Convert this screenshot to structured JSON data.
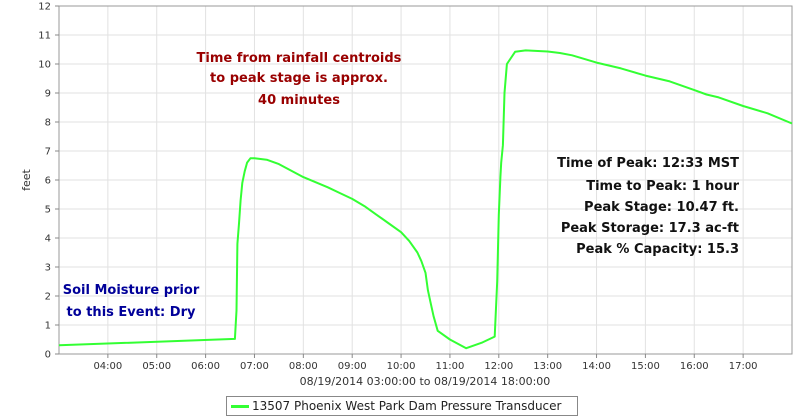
{
  "chart_data": {
    "type": "line",
    "ylabel": "feet",
    "xrange_label": "08/19/2014 03:00:00 to 08/19/2014 18:00:00",
    "xlim": [
      "03:00",
      "18:00"
    ],
    "ylim": [
      0,
      12
    ],
    "x_ticks": [
      "04:00",
      "05:00",
      "06:00",
      "07:00",
      "08:00",
      "09:00",
      "10:00",
      "11:00",
      "12:00",
      "13:00",
      "14:00",
      "15:00",
      "16:00",
      "17:00"
    ],
    "y_ticks": [
      0,
      1,
      2,
      3,
      4,
      5,
      6,
      7,
      8,
      9,
      10,
      11,
      12
    ],
    "grid": true,
    "legend_position": "bottom",
    "series": [
      {
        "name": "13507 Phoenix West Park Dam Pressure Transducer",
        "color": "#33ff33",
        "segments": [
          {
            "x": [
              "03:00",
              "06:36",
              "06:38",
              "06:39",
              "06:41",
              "06:43",
              "06:45",
              "06:48",
              "06:51",
              "06:55",
              "07:00",
              "07:15",
              "07:30",
              "08:00",
              "08:30",
              "08:45",
              "09:00",
              "09:15",
              "09:30",
              "09:45",
              "10:00",
              "10:10",
              "10:20",
              "10:25",
              "10:30",
              "10:33",
              "10:36",
              "10:40",
              "10:45",
              "11:00",
              "11:20",
              "11:40",
              "11:55",
              "11:58",
              "12:00",
              "12:02",
              "12:03",
              "12:05",
              "12:07",
              "12:10",
              "12:20",
              "12:33",
              "13:00",
              "13:15",
              "13:30",
              "14:00",
              "14:15",
              "14:30",
              "15:00",
              "15:30",
              "16:00",
              "16:15",
              "16:30",
              "17:00",
              "17:30",
              "18:00"
            ],
            "y": [
              0.3,
              0.52,
              1.5,
              3.8,
              4.5,
              5.3,
              5.9,
              6.3,
              6.6,
              6.75,
              6.75,
              6.7,
              6.55,
              6.1,
              5.75,
              5.55,
              5.35,
              5.1,
              4.8,
              4.5,
              4.2,
              3.9,
              3.5,
              3.2,
              2.8,
              2.2,
              1.8,
              1.3,
              0.8,
              0.5,
              0.2,
              0.4,
              0.6,
              2.5,
              4.8,
              6.1,
              6.6,
              7.2,
              9.0,
              10.0,
              10.42,
              10.47,
              10.43,
              10.38,
              10.3,
              10.05,
              9.95,
              9.85,
              9.6,
              9.4,
              9.1,
              8.95,
              8.85,
              8.55,
              8.3,
              7.95
            ]
          }
        ]
      }
    ],
    "annotations": [
      {
        "id": "centroid",
        "color": "#990000",
        "lines": [
          "Time from rainfall centroids",
          "to peak stage is approx.",
          "40 minutes"
        ]
      },
      {
        "id": "peak-info",
        "color": "#111111",
        "lines": [
          "Time of Peak: 12:33 MST",
          "Time to Peak: 1 hour",
          "Peak Stage: 10.47 ft.",
          "Peak Storage: 17.3 ac-ft",
          "Peak % Capacity: 15.3"
        ]
      },
      {
        "id": "soil",
        "color": "#000099",
        "lines": [
          "Soil Moisture prior",
          "to this Event: Dry"
        ]
      }
    ]
  }
}
